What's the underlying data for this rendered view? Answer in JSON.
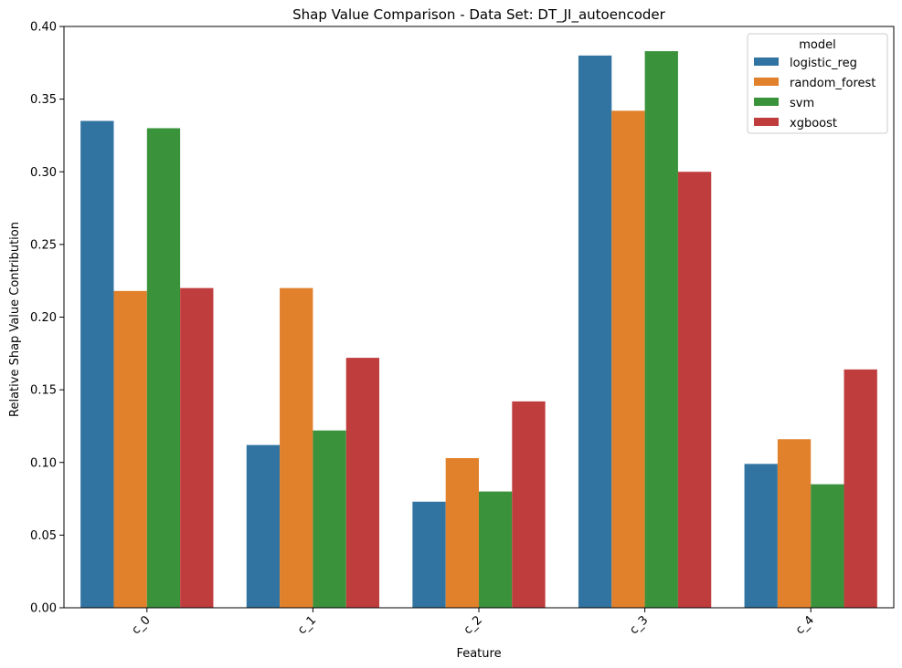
{
  "chart_data": {
    "type": "bar",
    "title": "Shap Value Comparison - Data Set: DT_JI_autoencoder",
    "xlabel": "Feature",
    "ylabel": "Relative Shap Value Contribution",
    "categories": [
      "c_0",
      "c_1",
      "c_2",
      "c_3",
      "c_4"
    ],
    "ylim": [
      0,
      0.4
    ],
    "yticks": [
      "0.00",
      "0.05",
      "0.10",
      "0.15",
      "0.20",
      "0.25",
      "0.30",
      "0.35",
      "0.40"
    ],
    "legend": {
      "title": "model",
      "position": "top-right"
    },
    "grid": false,
    "series": [
      {
        "name": "logistic_reg",
        "color": "#3274a1",
        "values": [
          0.335,
          0.112,
          0.073,
          0.38,
          0.099
        ]
      },
      {
        "name": "random_forest",
        "color": "#e1812c",
        "values": [
          0.218,
          0.22,
          0.103,
          0.342,
          0.116
        ]
      },
      {
        "name": "svm",
        "color": "#3a923a",
        "values": [
          0.33,
          0.122,
          0.08,
          0.383,
          0.085
        ]
      },
      {
        "name": "xgboost",
        "color": "#c03d3e",
        "values": [
          0.22,
          0.172,
          0.142,
          0.3,
          0.164
        ]
      }
    ]
  }
}
